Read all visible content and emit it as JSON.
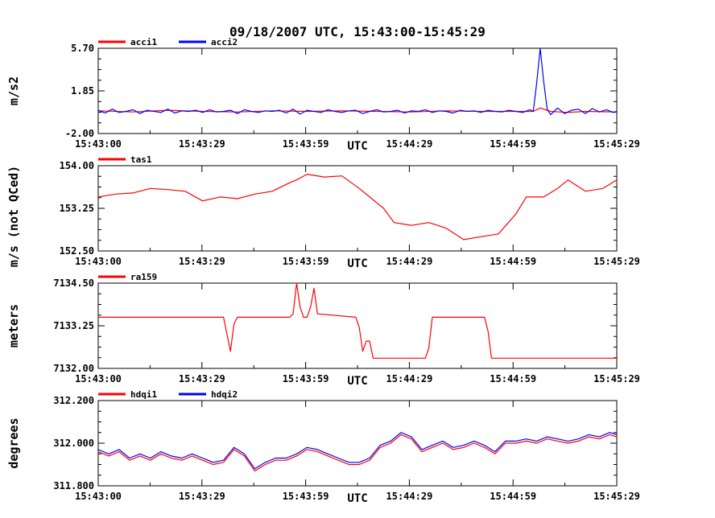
{
  "chart_data": {
    "title": "09/18/2007  UTC, 15:43:00-15:45:29",
    "x_ticks": [
      "15:43:00",
      "15:43:29",
      "15:43:59",
      "15:44:29",
      "15:44:59",
      "15:45:29"
    ],
    "charts": [
      {
        "type": "line",
        "ylabel": "m/s2",
        "xlabel": "UTC",
        "ylim": [
          -2.0,
          5.7
        ],
        "ytick_labels": [
          "5.70",
          "1.85",
          "-2.00"
        ],
        "ytick_values": [
          5.7,
          1.85,
          -2.0
        ],
        "series": [
          {
            "name": "acci1",
            "color": "#ff0000",
            "x": [
              0,
              10,
              20,
              30,
              40,
              50,
              60,
              70,
              80,
              90,
              100,
              110,
              120,
              125,
              127,
              130,
              135,
              140,
              149
            ],
            "y": [
              0.05,
              -0.05,
              0.1,
              0.0,
              -0.05,
              0.05,
              0.0,
              0.05,
              0.0,
              -0.05,
              0.05,
              0.0,
              0.0,
              0.0,
              0.3,
              0.0,
              -0.1,
              0.0,
              -0.05
            ]
          },
          {
            "name": "acci2",
            "color": "#0000ff",
            "x": [
              0,
              2,
              4,
              6,
              8,
              10,
              12,
              14,
              16,
              18,
              20,
              22,
              24,
              26,
              28,
              30,
              32,
              34,
              36,
              38,
              40,
              42,
              44,
              46,
              48,
              50,
              52,
              54,
              56,
              58,
              60,
              62,
              64,
              66,
              68,
              70,
              72,
              74,
              76,
              78,
              80,
              82,
              84,
              86,
              88,
              90,
              92,
              94,
              96,
              98,
              100,
              102,
              104,
              106,
              108,
              110,
              112,
              114,
              116,
              118,
              120,
              122,
              124,
              125,
              126,
              127,
              128,
              129,
              130,
              132,
              134,
              136,
              138,
              140,
              142,
              144,
              146,
              148,
              149
            ],
            "y": [
              0.1,
              -0.15,
              0.2,
              -0.1,
              0.0,
              0.15,
              -0.2,
              0.1,
              0.0,
              -0.1,
              0.2,
              -0.15,
              0.05,
              0.0,
              0.1,
              -0.1,
              0.15,
              -0.05,
              0.0,
              0.1,
              -0.2,
              0.15,
              0.0,
              -0.1,
              0.05,
              0.0,
              0.1,
              -0.15,
              0.2,
              -0.25,
              0.1,
              0.0,
              -0.1,
              0.15,
              0.0,
              -0.1,
              0.05,
              0.1,
              -0.2,
              0.0,
              0.15,
              -0.05,
              0.0,
              0.1,
              -0.15,
              0.05,
              0.0,
              0.15,
              -0.1,
              0.05,
              0.0,
              -0.15,
              0.1,
              0.0,
              0.05,
              -0.1,
              0.1,
              0.0,
              -0.05,
              0.1,
              0.0,
              -0.1,
              0.15,
              0.0,
              2.6,
              5.7,
              2.7,
              0.2,
              -0.3,
              0.3,
              -0.2,
              0.1,
              0.2,
              -0.2,
              0.25,
              -0.05,
              0.15,
              -0.1,
              0.0
            ]
          }
        ]
      },
      {
        "type": "line",
        "ylabel": "m/s (not QCed)",
        "xlabel": "UTC",
        "ylim": [
          152.5,
          154.0
        ],
        "ytick_labels": [
          "154.00",
          "153.25",
          "152.50"
        ],
        "ytick_values": [
          154.0,
          153.25,
          152.5
        ],
        "series": [
          {
            "name": "tas1",
            "color": "#ff0000",
            "x": [
              0,
              5,
              10,
              15,
              20,
              25,
              30,
              35,
              40,
              45,
              50,
              55,
              57,
              60,
              65,
              70,
              75,
              78,
              82,
              85,
              90,
              95,
              100,
              105,
              110,
              115,
              120,
              123,
              128,
              132,
              135,
              140,
              145,
              149
            ],
            "y": [
              153.45,
              153.5,
              153.52,
              153.6,
              153.58,
              153.55,
              153.38,
              153.45,
              153.42,
              153.5,
              153.55,
              153.7,
              153.75,
              153.85,
              153.8,
              153.82,
              153.6,
              153.45,
              153.25,
              153.0,
              152.95,
              153.0,
              152.9,
              152.7,
              152.75,
              152.8,
              153.15,
              153.45,
              153.45,
              153.6,
              153.75,
              153.55,
              153.6,
              153.75
            ]
          }
        ]
      },
      {
        "type": "line",
        "ylabel": "meters",
        "xlabel": "UTC",
        "ylim": [
          7132.0,
          7134.5
        ],
        "ytick_labels": [
          "7134.50",
          "7133.25",
          "7132.00"
        ],
        "ytick_values": [
          7134.5,
          7133.25,
          7132.0
        ],
        "series": [
          {
            "name": "ra159",
            "color": "#ff0000",
            "x": [
              0,
              36,
              37,
              38,
              39,
              40,
              55,
              56,
              57,
              58,
              59,
              60,
              61,
              62,
              63,
              74,
              75,
              76,
              77,
              78,
              79,
              80,
              81,
              82,
              94,
              95,
              96,
              97,
              98,
              110,
              111,
              112,
              113,
              114,
              115,
              116,
              149
            ],
            "y": [
              7133.5,
              7133.5,
              7133.0,
              7132.5,
              7133.3,
              7133.5,
              7133.5,
              7133.6,
              7134.5,
              7133.8,
              7133.5,
              7133.5,
              7133.8,
              7134.35,
              7133.6,
              7133.5,
              7133.2,
              7132.5,
              7132.8,
              7132.8,
              7132.3,
              7132.3,
              7132.3,
              7132.3,
              7132.3,
              7132.6,
              7133.5,
              7133.5,
              7133.5,
              7133.5,
              7133.5,
              7133.1,
              7132.3,
              7132.3,
              7132.3,
              7132.3,
              7132.3
            ]
          }
        ]
      },
      {
        "type": "line",
        "ylabel": "degrees",
        "xlabel": "UTC",
        "ylim": [
          311.8,
          312.2
        ],
        "ytick_labels": [
          "312.200",
          "312.000",
          "311.800"
        ],
        "ytick_values": [
          312.2,
          312.0,
          311.8
        ],
        "series": [
          {
            "name": "hdqi1",
            "color": "#ff0000",
            "x": [
              0,
              3,
              6,
              9,
              12,
              15,
              18,
              21,
              24,
              27,
              30,
              33,
              36,
              39,
              42,
              45,
              48,
              51,
              54,
              57,
              60,
              63,
              66,
              69,
              72,
              75,
              78,
              81,
              84,
              87,
              90,
              93,
              96,
              99,
              102,
              105,
              108,
              111,
              114,
              117,
              120,
              123,
              126,
              129,
              132,
              135,
              138,
              141,
              144,
              147,
              149
            ],
            "y": [
              311.96,
              311.94,
              311.96,
              311.92,
              311.94,
              311.92,
              311.95,
              311.93,
              311.92,
              311.94,
              311.92,
              311.9,
              311.91,
              311.97,
              311.94,
              311.87,
              311.9,
              311.92,
              311.92,
              311.94,
              311.97,
              311.96,
              311.94,
              311.92,
              311.9,
              311.9,
              311.92,
              311.98,
              312.0,
              312.04,
              312.02,
              311.96,
              311.98,
              312.0,
              311.97,
              311.98,
              312.0,
              311.98,
              311.95,
              312.0,
              312.0,
              312.01,
              312.0,
              312.02,
              312.01,
              312.0,
              312.01,
              312.03,
              312.02,
              312.04,
              312.03
            ]
          },
          {
            "name": "hdqi2",
            "color": "#0000ff",
            "x": [
              0,
              3,
              6,
              9,
              12,
              15,
              18,
              21,
              24,
              27,
              30,
              33,
              36,
              39,
              42,
              45,
              48,
              51,
              54,
              57,
              60,
              63,
              66,
              69,
              72,
              75,
              78,
              81,
              84,
              87,
              90,
              93,
              96,
              99,
              102,
              105,
              108,
              111,
              114,
              117,
              120,
              123,
              126,
              129,
              132,
              135,
              138,
              141,
              144,
              147,
              149
            ],
            "y": [
              311.97,
              311.95,
              311.97,
              311.93,
              311.95,
              311.93,
              311.96,
              311.94,
              311.93,
              311.95,
              311.93,
              311.91,
              311.92,
              311.98,
              311.95,
              311.88,
              311.91,
              311.93,
              311.93,
              311.95,
              311.98,
              311.97,
              311.95,
              311.93,
              311.91,
              311.91,
              311.93,
              311.99,
              312.01,
              312.05,
              312.03,
              311.97,
              311.99,
              312.01,
              311.98,
              311.99,
              312.01,
              311.99,
              311.96,
              312.01,
              312.01,
              312.02,
              312.01,
              312.03,
              312.02,
              312.01,
              312.02,
              312.04,
              312.03,
              312.05,
              312.04
            ]
          }
        ]
      }
    ]
  }
}
